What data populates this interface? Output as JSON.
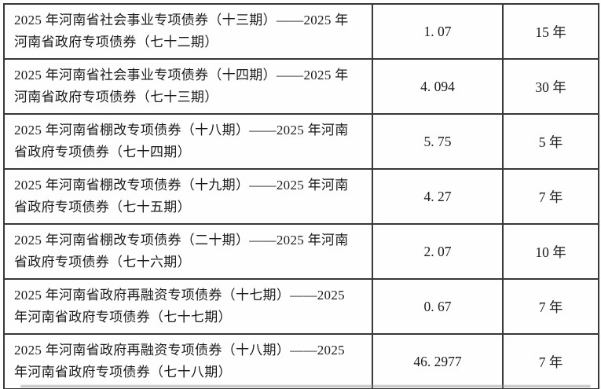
{
  "table": {
    "rows": [
      {
        "name": "2025 年河南省社会事业专项债券（十三期）——2025 年河南省政府专项债券（七十二期）",
        "amount": "1. 07",
        "term": "15 年"
      },
      {
        "name": "2025 年河南省社会事业专项债券（十四期）——2025 年河南省政府专项债券（七十三期）",
        "amount": "4. 094",
        "term": "30 年"
      },
      {
        "name": "2025 年河南省棚改专项债券（十八期）——2025 年河南省政府专项债券（七十四期）",
        "amount": "5. 75",
        "term": "5 年"
      },
      {
        "name": "2025 年河南省棚改专项债券（十九期）——2025 年河南省政府专项债券（七十五期）",
        "amount": "4. 27",
        "term": "7 年"
      },
      {
        "name": "2025 年河南省棚改专项债券（二十期）——2025 年河南省政府专项债券（七十六期）",
        "amount": "2. 07",
        "term": "10 年"
      },
      {
        "name": "2025 年河南省政府再融资专项债券（十七期）——2025 年河南省政府专项债券（七十七期）",
        "amount": "0. 67",
        "term": "7 年"
      },
      {
        "name": "2025 年河南省政府再融资专项债券（十八期）——2025 年河南省政府专项债券（七十八期）",
        "amount": "46. 2977",
        "term": "7 年"
      }
    ]
  }
}
